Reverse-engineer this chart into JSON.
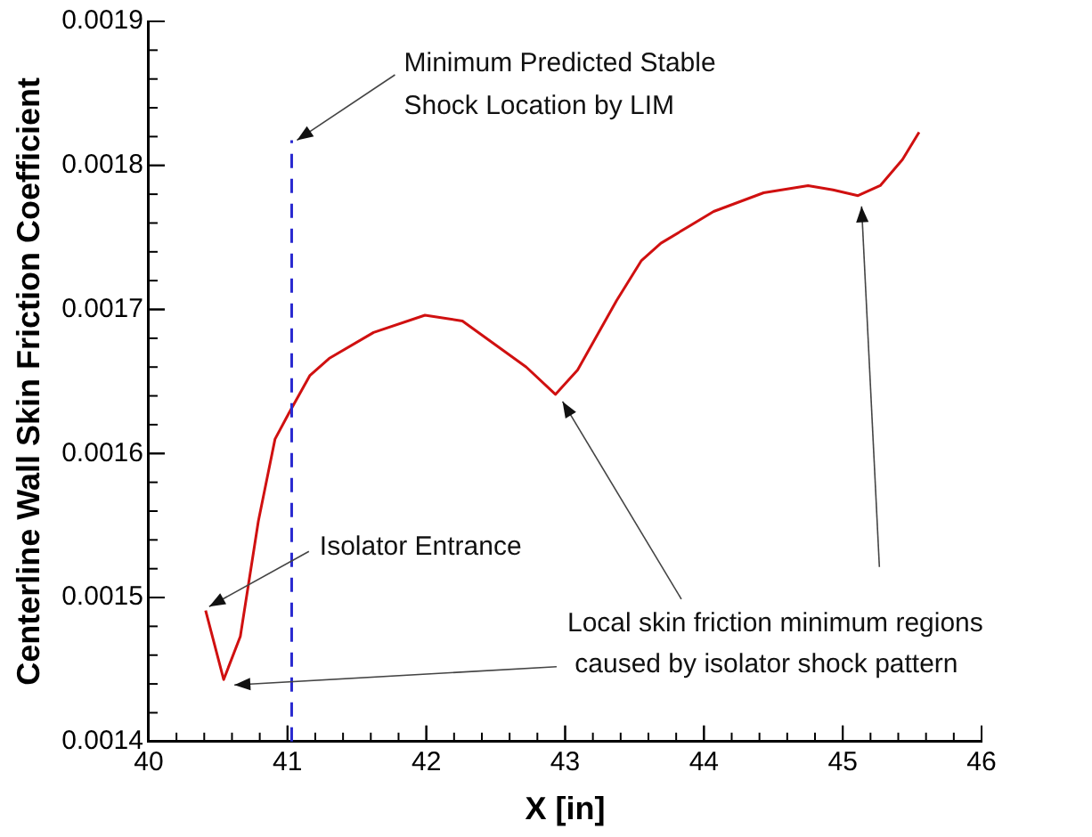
{
  "chart_data": {
    "type": "line",
    "xlabel": "X [in]",
    "ylabel": "Centerline Wall Skin Friction Coefficient",
    "series": [
      {
        "color": "#d01010",
        "x": [
          40.41,
          40.54,
          40.66,
          40.79,
          40.91,
          41.01,
          41.16,
          41.3,
          41.62,
          41.99,
          42.26,
          42.72,
          42.93,
          43.09,
          43.37,
          43.55,
          43.69,
          44.07,
          44.43,
          44.75,
          44.93,
          45.11,
          45.27,
          45.43,
          45.55
        ],
        "values": [
          0.001491,
          0.001443,
          0.001473,
          0.001553,
          0.00161,
          0.001628,
          0.001654,
          0.001666,
          0.001684,
          0.001696,
          0.001692,
          0.00166,
          0.001641,
          0.001658,
          0.001706,
          0.001734,
          0.001746,
          0.001768,
          0.001781,
          0.001786,
          0.001783,
          0.001779,
          0.001786,
          0.001804,
          0.001823
        ]
      }
    ],
    "xlim": [
      40,
      46
    ],
    "xticks": [
      40,
      41,
      42,
      43,
      44,
      45,
      46
    ],
    "ylim": [
      0.0014,
      0.0019
    ],
    "yticks": [
      {
        "value": 0.0014,
        "label": "0.0014"
      },
      {
        "value": 0.0015,
        "label": "0.0015"
      },
      {
        "value": 0.0016,
        "label": "0.0016"
      },
      {
        "value": 0.0017,
        "label": "0.0017"
      },
      {
        "value": 0.0018,
        "label": "0.0018"
      },
      {
        "value": 0.0019,
        "label": "0.0019"
      }
    ],
    "ref_lines": [
      {
        "axis": "x",
        "value": 41.03,
        "label": "Minimum Predicted Stable\nShock Location by LIM",
        "color": "#2a2ad0",
        "line_style": "dashed"
      }
    ],
    "annotations": [
      {
        "text": "Isolator Entrance",
        "x": 40.41,
        "y": 0.00149
      },
      {
        "text": "Local skin friction minimum regions\n caused by isolator shock pattern",
        "x": 42.93,
        "y": 0.001641
      }
    ],
    "grid": false,
    "legend": false,
    "marker": "none",
    "line_style": "solid"
  }
}
